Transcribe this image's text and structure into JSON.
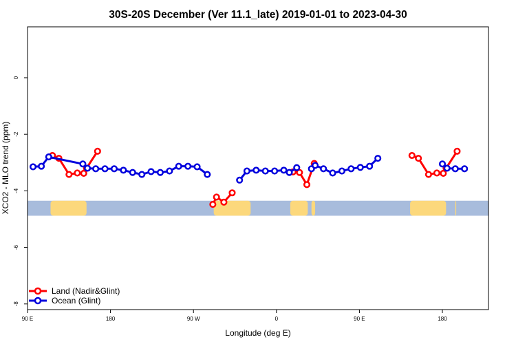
{
  "chart_data": {
    "type": "line",
    "title": "30S-20S December (Ver 11.1_late)   2019-01-01 to 2023-04-30",
    "xlabel": "Longitude (deg E)",
    "ylabel": "XCO2 - MLO trend (ppm)",
    "xlim": [
      90,
      590
    ],
    "ylim": [
      -8.2,
      1.8
    ],
    "x_ticks": [
      {
        "value": 90,
        "label": "90 E"
      },
      {
        "value": 180,
        "label": "180"
      },
      {
        "value": 270,
        "label": "90 W"
      },
      {
        "value": 360,
        "label": "0"
      },
      {
        "value": 450,
        "label": "90 E"
      },
      {
        "value": 540,
        "label": "180"
      }
    ],
    "y_ticks": [
      {
        "value": 0,
        "label": "0"
      },
      {
        "value": -2,
        "label": "-2"
      },
      {
        "value": -4,
        "label": "-4"
      },
      {
        "value": -6,
        "label": "-6"
      },
      {
        "value": -8,
        "label": "-8"
      }
    ],
    "map_band": {
      "y_top": -4.35,
      "y_bottom": -4.88,
      "ocean_color": "#a8bcdc",
      "land_color": "#fcd87c",
      "land_segments": [
        {
          "x_start": 115,
          "x_end": 154
        },
        {
          "x_start": 292,
          "x_end": 332
        },
        {
          "x_start": 375,
          "x_end": 394
        },
        {
          "x_start": 398,
          "x_end": 402
        },
        {
          "x_start": 505,
          "x_end": 544
        },
        {
          "x_start": 554,
          "x_end": 555
        }
      ]
    },
    "series": [
      {
        "name": "Land (Nadir&Glint)",
        "color": "#ff0000",
        "segments": [
          [
            {
              "x": 117,
              "y": -2.75
            },
            {
              "x": 124,
              "y": -2.85
            },
            {
              "x": 135,
              "y": -3.42
            },
            {
              "x": 144,
              "y": -3.37
            },
            {
              "x": 151,
              "y": -3.38
            },
            {
              "x": 154,
              "y": -3.2
            },
            {
              "x": 166,
              "y": -2.6
            }
          ],
          [
            {
              "x": 291,
              "y": -4.48
            },
            {
              "x": 295,
              "y": -4.22
            },
            {
              "x": 303,
              "y": -4.4
            },
            {
              "x": 312,
              "y": -4.07
            }
          ],
          [
            {
              "x": 378,
              "y": -3.33
            },
            {
              "x": 385,
              "y": -3.35
            },
            {
              "x": 393,
              "y": -3.78
            },
            {
              "x": 401,
              "y": -3.03
            }
          ],
          [
            {
              "x": 507,
              "y": -2.75
            },
            {
              "x": 514,
              "y": -2.85
            },
            {
              "x": 525,
              "y": -3.42
            },
            {
              "x": 534,
              "y": -3.37
            },
            {
              "x": 541,
              "y": -3.38
            },
            {
              "x": 544,
              "y": -3.2
            },
            {
              "x": 556,
              "y": -2.6
            }
          ]
        ]
      },
      {
        "name": "Ocean (Glint)",
        "color": "#0000dd",
        "segments": [
          [
            {
              "x": 96,
              "y": -3.15
            },
            {
              "x": 105,
              "y": -3.13
            },
            {
              "x": 113,
              "y": -2.8
            },
            {
              "x": 150,
              "y": -3.05
            },
            {
              "x": 155,
              "y": -3.2
            },
            {
              "x": 164,
              "y": -3.22
            },
            {
              "x": 174,
              "y": -3.22
            },
            {
              "x": 184,
              "y": -3.22
            },
            {
              "x": 194,
              "y": -3.27
            },
            {
              "x": 204,
              "y": -3.35
            },
            {
              "x": 214,
              "y": -3.42
            },
            {
              "x": 224,
              "y": -3.32
            },
            {
              "x": 234,
              "y": -3.35
            },
            {
              "x": 244,
              "y": -3.3
            },
            {
              "x": 254,
              "y": -3.13
            },
            {
              "x": 264,
              "y": -3.13
            },
            {
              "x": 274,
              "y": -3.15
            },
            {
              "x": 285,
              "y": -3.42
            }
          ],
          [
            {
              "x": 320,
              "y": -3.62
            },
            {
              "x": 328,
              "y": -3.3
            },
            {
              "x": 338,
              "y": -3.27
            },
            {
              "x": 348,
              "y": -3.3
            },
            {
              "x": 358,
              "y": -3.3
            },
            {
              "x": 368,
              "y": -3.27
            },
            {
              "x": 374,
              "y": -3.35
            },
            {
              "x": 382,
              "y": -3.18
            }
          ],
          [
            {
              "x": 398,
              "y": -3.22
            },
            {
              "x": 402,
              "y": -3.1
            },
            {
              "x": 411,
              "y": -3.22
            },
            {
              "x": 421,
              "y": -3.37
            },
            {
              "x": 431,
              "y": -3.3
            },
            {
              "x": 441,
              "y": -3.22
            },
            {
              "x": 451,
              "y": -3.17
            },
            {
              "x": 461,
              "y": -3.13
            },
            {
              "x": 470,
              "y": -2.85
            }
          ],
          [
            {
              "x": 540,
              "y": -3.05
            },
            {
              "x": 545,
              "y": -3.2
            },
            {
              "x": 554,
              "y": -3.22
            },
            {
              "x": 564,
              "y": -3.22
            }
          ]
        ]
      }
    ],
    "legend": {
      "position": "bottom-left",
      "entries": [
        {
          "label": "Land (Nadir&Glint)",
          "color": "#ff0000"
        },
        {
          "label": "Ocean (Glint)",
          "color": "#0000dd"
        }
      ]
    }
  }
}
